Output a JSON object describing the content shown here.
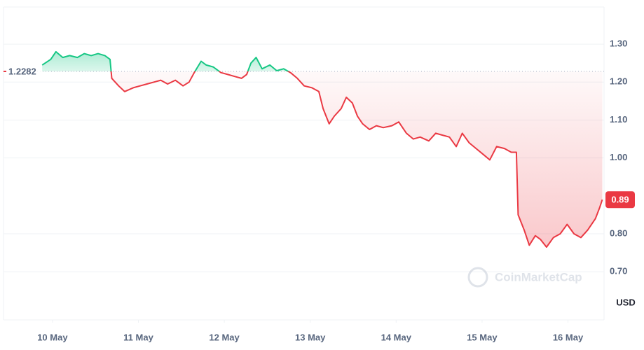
{
  "chart_data": {
    "type": "line",
    "x": [
      9.88,
      9.98,
      10.04,
      10.12,
      10.2,
      10.29,
      10.37,
      10.45,
      10.53,
      10.61,
      10.67,
      10.69,
      10.77,
      10.84,
      10.94,
      11.02,
      11.1,
      11.18,
      11.26,
      11.34,
      11.43,
      11.52,
      11.59,
      11.65,
      11.73,
      11.79,
      11.87,
      11.96,
      12.04,
      12.12,
      12.2,
      12.26,
      12.31,
      12.37,
      12.44,
      12.53,
      12.61,
      12.69,
      12.77,
      12.85,
      12.93,
      13.02,
      13.1,
      13.15,
      13.22,
      13.28,
      13.36,
      13.42,
      13.49,
      13.55,
      13.61,
      13.69,
      13.77,
      13.85,
      13.95,
      14.03,
      14.12,
      14.2,
      14.28,
      14.38,
      14.46,
      14.54,
      14.62,
      14.7,
      14.77,
      14.85,
      14.93,
      15.01,
      15.09,
      15.17,
      15.26,
      15.34,
      15.4,
      15.42,
      15.49,
      15.55,
      15.62,
      15.68,
      15.75,
      15.83,
      15.91,
      15.99,
      16.07,
      16.15,
      16.23,
      16.32,
      16.37,
      16.4
    ],
    "values": [
      1.245,
      1.26,
      1.28,
      1.265,
      1.27,
      1.265,
      1.275,
      1.27,
      1.275,
      1.27,
      1.26,
      1.21,
      1.19,
      1.175,
      1.185,
      1.19,
      1.195,
      1.2,
      1.205,
      1.195,
      1.205,
      1.19,
      1.2,
      1.225,
      1.255,
      1.245,
      1.24,
      1.225,
      1.22,
      1.215,
      1.21,
      1.22,
      1.25,
      1.265,
      1.235,
      1.245,
      1.23,
      1.235,
      1.225,
      1.21,
      1.19,
      1.185,
      1.175,
      1.13,
      1.09,
      1.11,
      1.13,
      1.16,
      1.145,
      1.11,
      1.09,
      1.075,
      1.085,
      1.08,
      1.085,
      1.095,
      1.065,
      1.05,
      1.055,
      1.045,
      1.065,
      1.06,
      1.055,
      1.03,
      1.065,
      1.04,
      1.025,
      1.01,
      0.995,
      1.03,
      1.025,
      1.015,
      1.015,
      0.85,
      0.81,
      0.77,
      0.795,
      0.785,
      0.765,
      0.79,
      0.8,
      0.825,
      0.8,
      0.79,
      0.81,
      0.84,
      0.87,
      0.89
    ],
    "baseline": 1.2282,
    "current_price": 0.89,
    "up_color": "#16c784",
    "down_color": "#ea3943",
    "xlim": [
      9.43,
      16.42
    ],
    "xticks": [
      {
        "value": 10,
        "label": "10 May"
      },
      {
        "value": 11,
        "label": "11 May"
      },
      {
        "value": 12,
        "label": "12 May"
      },
      {
        "value": 13,
        "label": "13 May"
      },
      {
        "value": 14,
        "label": "14 May"
      },
      {
        "value": 15,
        "label": "15 May"
      },
      {
        "value": 16,
        "label": "16 May"
      }
    ],
    "ylim": [
      0.573,
      1.398
    ],
    "yticks": [
      {
        "value": 0.7,
        "label": "0.70"
      },
      {
        "value": 0.8,
        "label": "0.80"
      },
      {
        "value": 1.0,
        "label": "1.00"
      },
      {
        "value": 1.1,
        "label": "1.10"
      },
      {
        "value": 1.2,
        "label": "1.20"
      },
      {
        "value": 1.3,
        "label": "1.30"
      }
    ],
    "grid": true,
    "unit": "USD",
    "watermark": "CoinMarketCap"
  }
}
